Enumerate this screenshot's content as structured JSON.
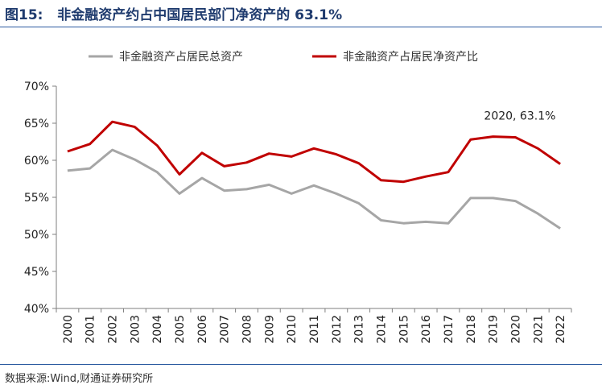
{
  "header": {
    "figure_label": "图15:",
    "figure_title": "非金融资产约占中国居民部门净资产的 63.1%"
  },
  "footer": {
    "source": "数据来源:Wind,财通证券研究所"
  },
  "colors": {
    "series_gray": "#a6a6a6",
    "series_red": "#c00000",
    "rule_blue": "#2a5aa0",
    "title_blue": "#1f3b6e"
  },
  "chart_data": {
    "type": "line",
    "x": [
      2000,
      2001,
      2002,
      2003,
      2004,
      2005,
      2006,
      2007,
      2008,
      2009,
      2010,
      2011,
      2012,
      2013,
      2014,
      2015,
      2016,
      2017,
      2018,
      2019,
      2020,
      2021,
      2022
    ],
    "x_tick_labels": [
      "2000",
      "2001",
      "2002",
      "2003",
      "2004",
      "2005",
      "2006",
      "2007",
      "2008",
      "2009",
      "2010",
      "2011",
      "2012",
      "2013",
      "2014",
      "2015",
      "2016",
      "2017",
      "2018",
      "2019",
      "2020",
      "2021",
      "2022"
    ],
    "series": [
      {
        "name": "非金融资产占居民总资产",
        "color": "#a6a6a6",
        "values": [
          58.6,
          58.9,
          61.4,
          60.1,
          58.4,
          55.5,
          57.6,
          55.9,
          56.1,
          56.7,
          55.5,
          56.6,
          55.5,
          54.2,
          51.9,
          51.5,
          51.7,
          51.5,
          54.9,
          54.9,
          54.5,
          52.8,
          50.8
        ]
      },
      {
        "name": "非金融资产占居民净资产比",
        "color": "#c00000",
        "values": [
          61.2,
          62.2,
          65.2,
          64.5,
          62.0,
          58.1,
          61.0,
          59.2,
          59.7,
          60.9,
          60.5,
          61.6,
          60.8,
          59.6,
          57.3,
          57.1,
          57.8,
          58.4,
          62.8,
          63.2,
          63.1,
          61.6,
          59.5
        ]
      }
    ],
    "ylim": [
      40,
      70
    ],
    "y_ticks": [
      "40%",
      "45%",
      "50%",
      "55%",
      "60%",
      "65%",
      "70%"
    ],
    "annotation": {
      "text": "2020, 63.1%",
      "x": 2020,
      "y": 63.1
    },
    "grid": false,
    "legend_position": "top"
  }
}
